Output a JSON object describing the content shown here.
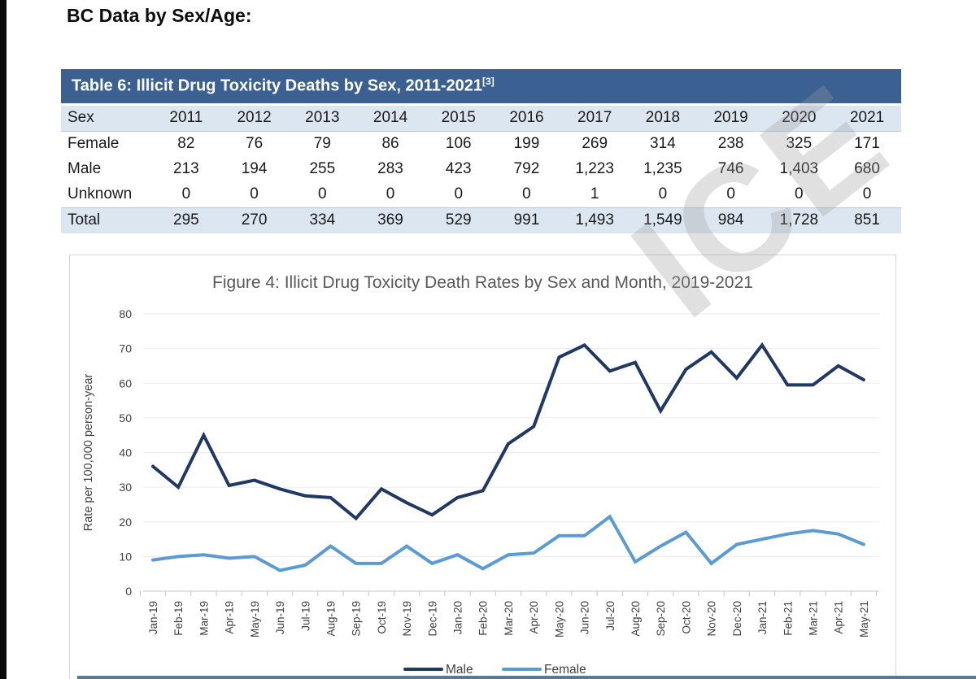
{
  "page": {
    "heading": "BC Data by Sex/Age:",
    "watermark_fragment": "ICE"
  },
  "table6": {
    "title": "Table 6: Illicit Drug Toxicity Deaths by Sex, 2011-2021",
    "title_superscript": "[3]",
    "columns": [
      "Sex",
      "2011",
      "2012",
      "2013",
      "2014",
      "2015",
      "2016",
      "2017",
      "2018",
      "2019",
      "2020",
      "2021"
    ],
    "rows": [
      {
        "label": "Female",
        "values": [
          "82",
          "76",
          "79",
          "86",
          "106",
          "199",
          "269",
          "314",
          "238",
          "325",
          "171"
        ],
        "highlight": false
      },
      {
        "label": "Male",
        "values": [
          "213",
          "194",
          "255",
          "283",
          "423",
          "792",
          "1,223",
          "1,235",
          "746",
          "1,403",
          "680"
        ],
        "highlight": false
      },
      {
        "label": "Unknown",
        "values": [
          "0",
          "0",
          "0",
          "0",
          "0",
          "0",
          "1",
          "0",
          "0",
          "0",
          "0"
        ],
        "highlight": false
      },
      {
        "label": "Total",
        "values": [
          "295",
          "270",
          "334",
          "369",
          "529",
          "991",
          "1,493",
          "1,549",
          "984",
          "1,728",
          "851"
        ],
        "highlight": true
      }
    ],
    "colors": {
      "header_bg": "#3a6191",
      "band_bg": "#dce6f1"
    }
  },
  "chart_data": {
    "type": "line",
    "title": "Figure 4: Illicit Drug Toxicity Death Rates by Sex and Month, 2019-2021",
    "xlabel": "",
    "ylabel": "Rate per 100,000 person-year",
    "ylim": [
      0,
      80
    ],
    "ytick_step": 10,
    "grid": true,
    "legend_position": "bottom",
    "categories": [
      "Jan-19",
      "Feb-19",
      "Mar-19",
      "Apr-19",
      "May-19",
      "Jun-19",
      "Jul-19",
      "Aug-19",
      "Sep-19",
      "Oct-19",
      "Nov-19",
      "Dec-19",
      "Jan-20",
      "Feb-20",
      "Mar-20",
      "Apr-20",
      "May-20",
      "Jun-20",
      "Jul-20",
      "Aug-20",
      "Sep-20",
      "Oct-20",
      "Nov-20",
      "Dec-20",
      "Jan-21",
      "Feb-21",
      "Mar-21",
      "Apr-21",
      "May-21"
    ],
    "series": [
      {
        "name": "Male",
        "color": "#1f3864",
        "values": [
          36,
          30,
          45,
          30.5,
          32,
          29.5,
          27.5,
          27,
          21,
          29.5,
          25.5,
          22,
          27,
          29,
          42.5,
          47.5,
          67.5,
          71,
          63.5,
          66,
          52,
          64,
          69,
          61.5,
          71,
          59.5,
          59.5,
          65,
          61
        ]
      },
      {
        "name": "Female",
        "color": "#5b9bd5",
        "values": [
          9,
          10,
          10.5,
          9.5,
          10,
          6,
          7.5,
          13,
          8,
          8,
          13,
          8,
          10.5,
          6.5,
          10.5,
          11,
          16,
          16,
          21.5,
          8.5,
          13,
          17,
          8,
          13.5,
          15,
          16.5,
          17.5,
          16.5,
          13.5
        ]
      }
    ]
  }
}
